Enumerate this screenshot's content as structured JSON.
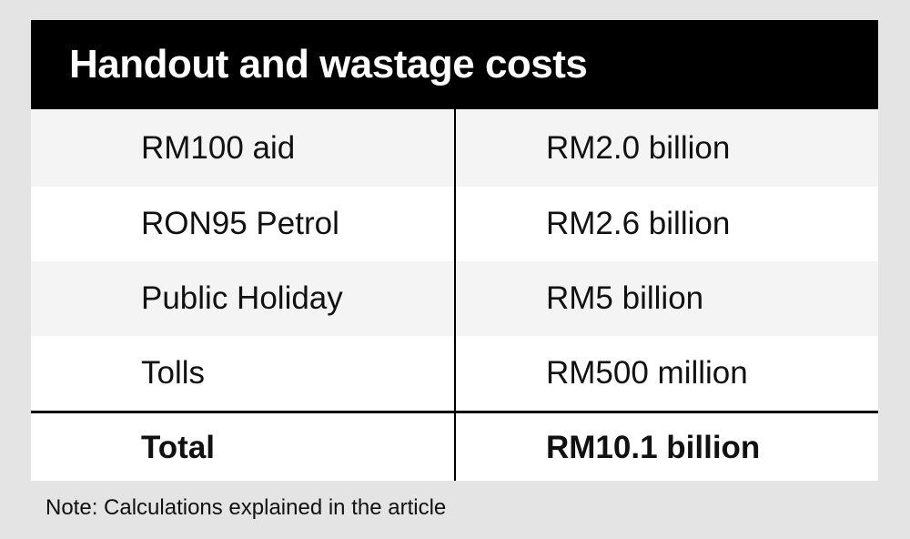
{
  "header": {
    "title": "Handout and wastage costs"
  },
  "table": {
    "rows": [
      [
        "RM100 aid",
        "RM2.0 billion"
      ],
      [
        "RON95 Petrol",
        "RM2.6 billion"
      ],
      [
        "Public Holiday",
        "RM5 billion"
      ],
      [
        "Tolls",
        "RM500 million"
      ]
    ],
    "total": [
      "Total",
      "RM10.1 billion"
    ]
  },
  "note": "Note: Calculations explained in the article"
}
